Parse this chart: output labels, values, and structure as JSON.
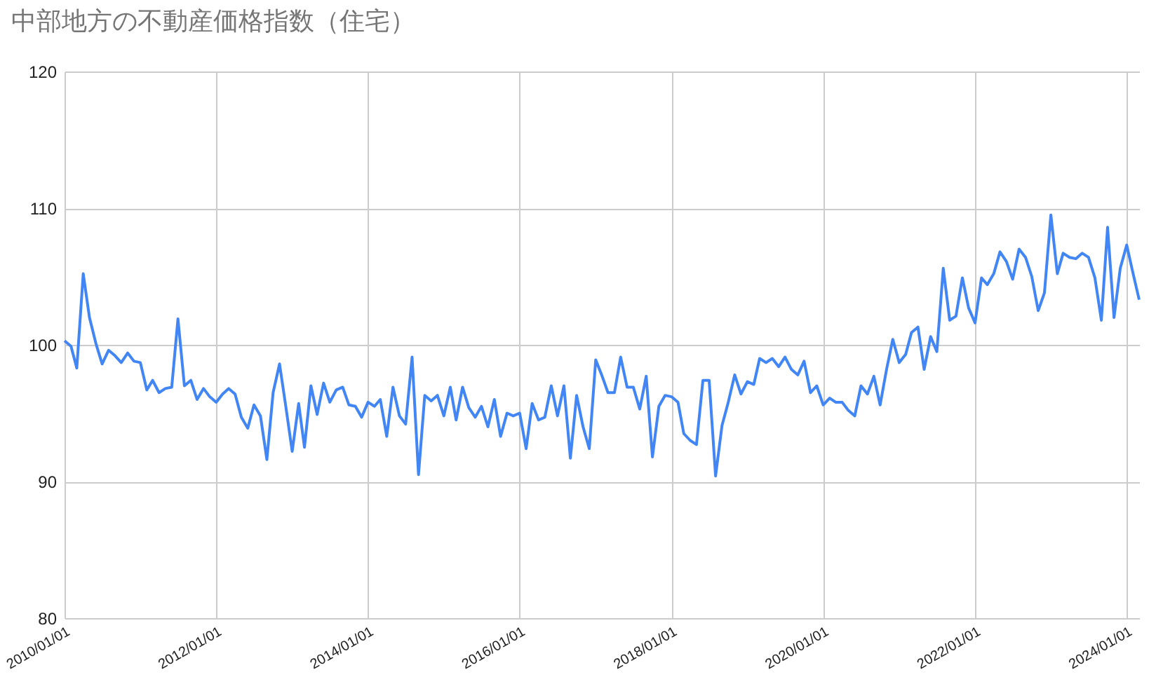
{
  "chart_data": {
    "type": "line",
    "title": "中部地方の不動産価格指数（住宅）",
    "x": [
      "2010-01",
      "2010-02",
      "2010-03",
      "2010-04",
      "2010-05",
      "2010-06",
      "2010-07",
      "2010-08",
      "2010-09",
      "2010-10",
      "2010-11",
      "2010-12",
      "2011-01",
      "2011-02",
      "2011-03",
      "2011-04",
      "2011-05",
      "2011-06",
      "2011-07",
      "2011-08",
      "2011-09",
      "2011-10",
      "2011-11",
      "2011-12",
      "2012-01",
      "2012-02",
      "2012-03",
      "2012-04",
      "2012-05",
      "2012-06",
      "2012-07",
      "2012-08",
      "2012-09",
      "2012-10",
      "2012-11",
      "2012-12",
      "2013-01",
      "2013-02",
      "2013-03",
      "2013-04",
      "2013-05",
      "2013-06",
      "2013-07",
      "2013-08",
      "2013-09",
      "2013-10",
      "2013-11",
      "2013-12",
      "2014-01",
      "2014-02",
      "2014-03",
      "2014-04",
      "2014-05",
      "2014-06",
      "2014-07",
      "2014-08",
      "2014-09",
      "2014-10",
      "2014-11",
      "2014-12",
      "2015-01",
      "2015-02",
      "2015-03",
      "2015-04",
      "2015-05",
      "2015-06",
      "2015-07",
      "2015-08",
      "2015-09",
      "2015-10",
      "2015-11",
      "2015-12",
      "2016-01",
      "2016-02",
      "2016-03",
      "2016-04",
      "2016-05",
      "2016-06",
      "2016-07",
      "2016-08",
      "2016-09",
      "2016-10",
      "2016-11",
      "2016-12",
      "2017-01",
      "2017-02",
      "2017-03",
      "2017-04",
      "2017-05",
      "2017-06",
      "2017-07",
      "2017-08",
      "2017-09",
      "2017-10",
      "2017-11",
      "2017-12",
      "2018-01",
      "2018-02",
      "2018-03",
      "2018-04",
      "2018-05",
      "2018-06",
      "2018-07",
      "2018-08",
      "2018-09",
      "2018-10",
      "2018-11",
      "2018-12",
      "2019-01",
      "2019-02",
      "2019-03",
      "2019-04",
      "2019-05",
      "2019-06",
      "2019-07",
      "2019-08",
      "2019-09",
      "2019-10",
      "2019-11",
      "2019-12",
      "2020-01",
      "2020-02",
      "2020-03",
      "2020-04",
      "2020-05",
      "2020-06",
      "2020-07",
      "2020-08",
      "2020-09",
      "2020-10",
      "2020-11",
      "2020-12",
      "2021-01",
      "2021-02",
      "2021-03",
      "2021-04",
      "2021-05",
      "2021-06",
      "2021-07",
      "2021-08",
      "2021-09",
      "2021-10",
      "2021-11",
      "2021-12",
      "2022-01",
      "2022-02",
      "2022-03",
      "2022-04",
      "2022-05",
      "2022-06",
      "2022-07",
      "2022-08",
      "2022-09",
      "2022-10",
      "2022-11",
      "2022-12",
      "2023-01",
      "2023-02",
      "2023-03",
      "2023-04",
      "2023-05",
      "2023-06",
      "2023-07",
      "2023-08",
      "2023-09",
      "2023-10",
      "2023-11",
      "2023-12",
      "2024-01",
      "2024-02",
      "2024-03"
    ],
    "series": [
      {
        "color": "#4285f4",
        "values": [
          100.3,
          99.9,
          98.3,
          105.2,
          102.0,
          100.1,
          98.6,
          99.6,
          99.2,
          98.7,
          99.4,
          98.8,
          98.7,
          96.7,
          97.4,
          96.5,
          96.8,
          96.9,
          101.9,
          97.0,
          97.4,
          96.0,
          96.8,
          96.2,
          95.8,
          96.4,
          96.8,
          96.4,
          94.7,
          93.9,
          95.6,
          94.8,
          91.6,
          96.5,
          98.6,
          95.5,
          92.2,
          95.7,
          92.5,
          97.0,
          94.9,
          97.2,
          95.8,
          96.7,
          96.9,
          95.6,
          95.5,
          94.7,
          95.8,
          95.5,
          96.0,
          93.3,
          96.9,
          94.8,
          94.2,
          99.1,
          90.5,
          96.3,
          95.9,
          96.3,
          94.8,
          96.9,
          94.5,
          96.9,
          95.4,
          94.7,
          95.5,
          94.0,
          96.0,
          93.3,
          95.0,
          94.8,
          95.0,
          92.4,
          95.7,
          94.5,
          94.7,
          97.0,
          94.8,
          97.0,
          91.7,
          96.3,
          94.0,
          92.4,
          98.9,
          97.7,
          96.5,
          96.5,
          99.1,
          96.9,
          96.9,
          95.3,
          97.7,
          91.8,
          95.5,
          96.3,
          96.2,
          95.8,
          93.5,
          93.0,
          92.7,
          97.4,
          97.4,
          90.4,
          94.1,
          95.8,
          97.8,
          96.4,
          97.3,
          97.1,
          99.0,
          98.7,
          99.0,
          98.4,
          99.1,
          98.2,
          97.8,
          98.8,
          96.5,
          97.0,
          95.6,
          96.1,
          95.8,
          95.8,
          95.2,
          94.8,
          97.0,
          96.4,
          97.7,
          95.6,
          98.2,
          100.4,
          98.7,
          99.3,
          100.9,
          101.3,
          98.2,
          100.6,
          99.5,
          105.6,
          101.8,
          102.1,
          104.9,
          102.7,
          101.6,
          104.9,
          104.4,
          105.2,
          106.8,
          106.1,
          104.8,
          107.0,
          106.4,
          105.0,
          102.5,
          103.8,
          109.5,
          105.2,
          106.7,
          106.4,
          106.3,
          106.7,
          106.4,
          104.9,
          101.8,
          108.6,
          102.0,
          105.6,
          107.3,
          105.2,
          103.3
        ]
      }
    ],
    "xlim": [
      "2010-01-01",
      "2024-03-01"
    ],
    "xticks": [
      {
        "value": "2010-01-01",
        "label": "2010/01/01"
      },
      {
        "value": "2012-01-01",
        "label": "2012/01/01"
      },
      {
        "value": "2014-01-01",
        "label": "2014/01/01"
      },
      {
        "value": "2016-01-01",
        "label": "2016/01/01"
      },
      {
        "value": "2018-01-01",
        "label": "2018/01/01"
      },
      {
        "value": "2020-01-01",
        "label": "2020/01/01"
      },
      {
        "value": "2022-01-01",
        "label": "2022/01/01"
      },
      {
        "value": "2024-01-01",
        "label": "2024/01/01"
      }
    ],
    "ylim": [
      80,
      120
    ],
    "yticks": [
      80,
      90,
      100,
      110,
      120
    ],
    "grid": true,
    "marker": "none",
    "line_style": "solid"
  }
}
